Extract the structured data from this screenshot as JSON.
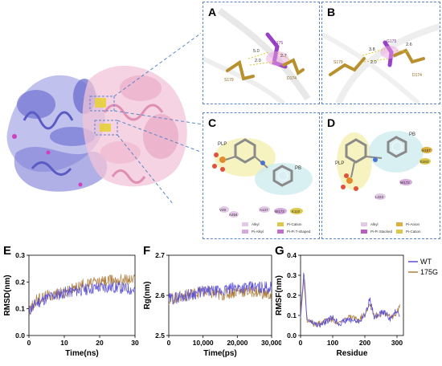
{
  "structure_panel": {
    "label_A": "A",
    "label_B": "B",
    "label_C": "C",
    "label_D": "D",
    "A": {
      "residues": [
        "L175",
        "S179",
        "D174"
      ],
      "distances": [
        "5.0",
        "2.0",
        "2.7"
      ]
    },
    "B": {
      "residues": [
        "G175",
        "S179",
        "D174"
      ],
      "distances": [
        "3.8",
        "2.0",
        "2.6"
      ]
    },
    "C": {
      "ligands": [
        "PLP",
        "PB"
      ],
      "residues": [
        "V49",
        "A264",
        "A137",
        "W172",
        "K110"
      ],
      "legend": [
        "Alkyl",
        "Pi-Cation",
        "Pi-Alkyl",
        "Pi-Pi T-shaped"
      ]
    },
    "D": {
      "ligands": [
        "PLP",
        "PB"
      ],
      "residues": [
        "H157",
        "E203",
        "W172",
        "L223"
      ],
      "legend": [
        "Alkyl",
        "Pi-Anion",
        "Pi-Pi Stacked",
        "Pi-Cation"
      ]
    }
  },
  "plots": {
    "E": {
      "label": "E",
      "ylabel": "RMSD(nm)",
      "xlabel": "Time(ns)",
      "yticks": [
        "0.0",
        "0.1",
        "0.2",
        "0.3"
      ],
      "xticks": [
        "0",
        "10",
        "20",
        "30"
      ]
    },
    "F": {
      "label": "F",
      "ylabel": "Rg(nm)",
      "xlabel": "Time(ps)",
      "yticks": [
        "2.5",
        "2.6",
        "2.7"
      ],
      "xticks": [
        "0",
        "10,000",
        "20,000",
        "30,000"
      ]
    },
    "G": {
      "label": "G",
      "ylabel": "RMSF(nm)",
      "xlabel": "Residue",
      "yticks": [
        "0.0",
        "0.1",
        "0.2",
        "0.3",
        "0.4"
      ],
      "xticks": [
        "0",
        "100",
        "200",
        "300"
      ]
    },
    "legend": [
      {
        "name": "WT",
        "color": "#5a4fd6"
      },
      {
        "name": "175G",
        "color": "#b08040"
      }
    ]
  },
  "chart_data": [
    {
      "type": "line",
      "title": "",
      "xlabel": "Time(ns)",
      "ylabel": "RMSD(nm)",
      "xlim": [
        0,
        30
      ],
      "ylim": [
        0.0,
        0.3
      ],
      "x": [
        0,
        2,
        5,
        10,
        15,
        20,
        25,
        30
      ],
      "series": [
        {
          "name": "WT",
          "values": [
            0.09,
            0.12,
            0.14,
            0.16,
            0.17,
            0.18,
            0.18,
            0.17
          ]
        },
        {
          "name": "175G",
          "values": [
            0.09,
            0.13,
            0.15,
            0.16,
            0.19,
            0.2,
            0.21,
            0.21
          ]
        }
      ]
    },
    {
      "type": "line",
      "title": "",
      "xlabel": "Time(ps)",
      "ylabel": "Rg(nm)",
      "xlim": [
        0,
        30000
      ],
      "ylim": [
        2.5,
        2.7
      ],
      "x": [
        0,
        5000,
        10000,
        15000,
        20000,
        25000,
        30000
      ],
      "series": [
        {
          "name": "WT",
          "values": [
            2.59,
            2.6,
            2.61,
            2.61,
            2.62,
            2.62,
            2.62
          ]
        },
        {
          "name": "175G",
          "values": [
            2.59,
            2.6,
            2.61,
            2.6,
            2.61,
            2.61,
            2.6
          ]
        }
      ]
    },
    {
      "type": "line",
      "title": "",
      "xlabel": "Residue",
      "ylabel": "RMSF(nm)",
      "xlim": [
        0,
        320
      ],
      "ylim": [
        0.0,
        0.4
      ],
      "x": [
        0,
        5,
        10,
        20,
        40,
        60,
        80,
        100,
        120,
        150,
        180,
        200,
        215,
        230,
        260,
        280,
        300,
        310
      ],
      "series": [
        {
          "name": "WT",
          "values": [
            0.1,
            0.2,
            0.33,
            0.08,
            0.06,
            0.05,
            0.07,
            0.09,
            0.06,
            0.08,
            0.07,
            0.1,
            0.18,
            0.09,
            0.12,
            0.08,
            0.13,
            0.1
          ]
        },
        {
          "name": "175G",
          "values": [
            0.09,
            0.18,
            0.3,
            0.07,
            0.06,
            0.06,
            0.08,
            0.08,
            0.06,
            0.09,
            0.08,
            0.11,
            0.16,
            0.1,
            0.11,
            0.09,
            0.11,
            0.16
          ]
        }
      ]
    }
  ]
}
